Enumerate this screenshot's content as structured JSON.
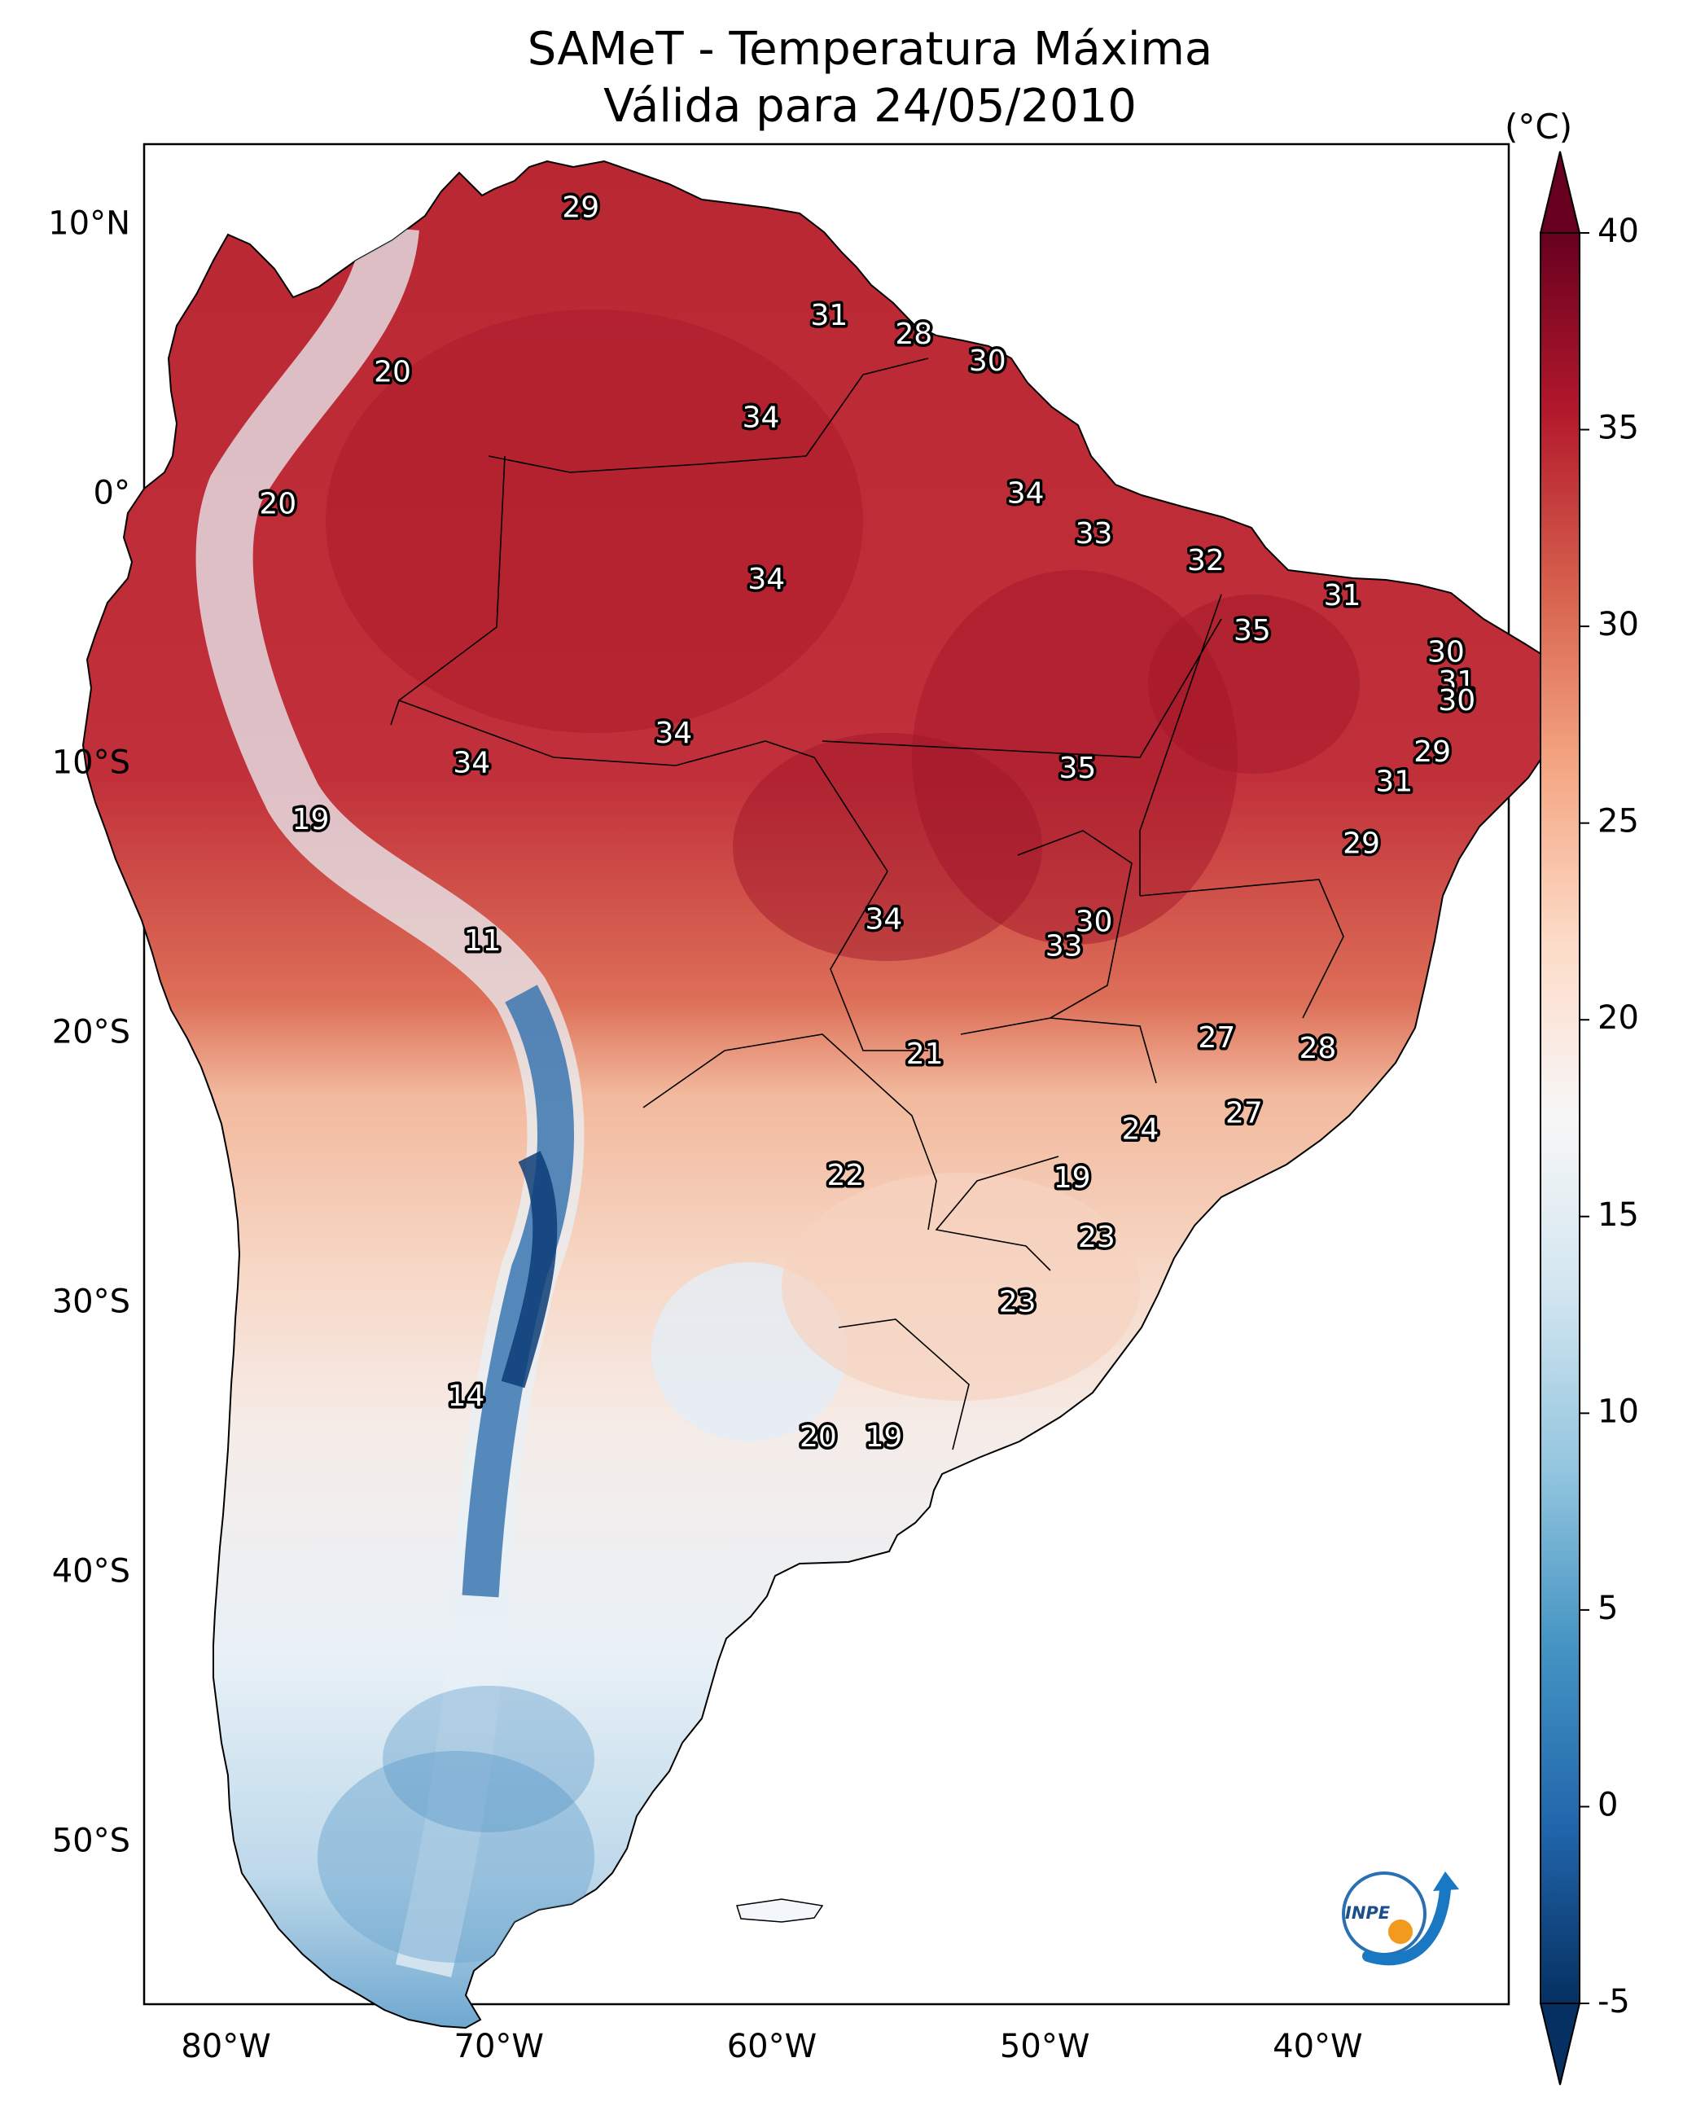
{
  "title": {
    "line1": "SAMeT - Temperatura Máxima",
    "line2": "Válida para 24/05/2010"
  },
  "colorbar": {
    "unit_label": "(°C)",
    "ticks": [
      "40",
      "35",
      "30",
      "25",
      "20",
      "15",
      "10",
      "5",
      "0",
      "-5"
    ],
    "tick_values": [
      40,
      35,
      30,
      25,
      20,
      15,
      10,
      5,
      0,
      -5
    ],
    "range": [
      -5,
      40
    ],
    "colormap": "RdBu_r",
    "colors": [
      "#053061",
      "#2166ac",
      "#4393c3",
      "#92c5de",
      "#d1e5f0",
      "#f7f7f7",
      "#fddbc7",
      "#f4a582",
      "#d6604d",
      "#b2182b",
      "#67001f"
    ]
  },
  "axes": {
    "lat_labels": [
      "10°N",
      "0°",
      "10°S",
      "20°S",
      "30°S",
      "40°S",
      "50°S"
    ],
    "lat_values": [
      10,
      0,
      -10,
      -20,
      -30,
      -40,
      -50
    ],
    "lon_labels": [
      "80°W",
      "70°W",
      "60°W",
      "50°W",
      "40°W"
    ],
    "lon_values": [
      -80,
      -70,
      -60,
      -50,
      -40
    ],
    "lon_range": [
      -83,
      -33
    ],
    "lat_range": [
      -56,
      13
    ]
  },
  "temperature_labels": [
    {
      "text": "29",
      "lon": -67,
      "lat": 10.6
    },
    {
      "text": "31",
      "lon": -57.9,
      "lat": 6.6
    },
    {
      "text": "28",
      "lon": -54.8,
      "lat": 5.9
    },
    {
      "text": "30",
      "lon": -52.1,
      "lat": 4.9
    },
    {
      "text": "20",
      "lon": -73.9,
      "lat": 4.5
    },
    {
      "text": "34",
      "lon": -60.4,
      "lat": 2.8
    },
    {
      "text": "20",
      "lon": -78.1,
      "lat": -0.4
    },
    {
      "text": "34",
      "lon": -50.7,
      "lat": 0.0
    },
    {
      "text": "33",
      "lon": -48.2,
      "lat": -1.5
    },
    {
      "text": "32",
      "lon": -44.1,
      "lat": -2.5
    },
    {
      "text": "34",
      "lon": -60.2,
      "lat": -3.2
    },
    {
      "text": "31",
      "lon": -39.1,
      "lat": -3.8
    },
    {
      "text": "35",
      "lon": -42.4,
      "lat": -5.1
    },
    {
      "text": "30",
      "lon": -35.3,
      "lat": -5.9
    },
    {
      "text": "31",
      "lon": -34.9,
      "lat": -7.0
    },
    {
      "text": "30",
      "lon": -34.9,
      "lat": -7.7
    },
    {
      "text": "34",
      "lon": -63.6,
      "lat": -8.9
    },
    {
      "text": "29",
      "lon": -35.8,
      "lat": -9.6
    },
    {
      "text": "34",
      "lon": -71.0,
      "lat": -10.0
    },
    {
      "text": "35",
      "lon": -48.8,
      "lat": -10.2
    },
    {
      "text": "31",
      "lon": -37.2,
      "lat": -10.7
    },
    {
      "text": "19",
      "lon": -76.9,
      "lat": -12.1
    },
    {
      "text": "29",
      "lon": -38.4,
      "lat": -13.0
    },
    {
      "text": "34",
      "lon": -55.9,
      "lat": -15.8
    },
    {
      "text": "30",
      "lon": -48.2,
      "lat": -15.9
    },
    {
      "text": "33",
      "lon": -49.3,
      "lat": -16.8
    },
    {
      "text": "11",
      "lon": -70.6,
      "lat": -16.6
    },
    {
      "text": "27",
      "lon": -43.7,
      "lat": -20.2
    },
    {
      "text": "28",
      "lon": -40.0,
      "lat": -20.6
    },
    {
      "text": "21",
      "lon": -54.4,
      "lat": -20.8
    },
    {
      "text": "27",
      "lon": -42.7,
      "lat": -23.0
    },
    {
      "text": "24",
      "lon": -46.5,
      "lat": -23.6
    },
    {
      "text": "22",
      "lon": -57.3,
      "lat": -25.3
    },
    {
      "text": "19",
      "lon": -49.0,
      "lat": -25.4
    },
    {
      "text": "23",
      "lon": -48.1,
      "lat": -27.6
    },
    {
      "text": "23",
      "lon": -51.0,
      "lat": -30.0
    },
    {
      "text": "14",
      "lon": -71.2,
      "lat": -33.5
    },
    {
      "text": "20",
      "lon": -58.3,
      "lat": -35.0
    },
    {
      "text": "19",
      "lon": -55.9,
      "lat": -35.0
    }
  ],
  "logo": {
    "text": "INPE"
  }
}
